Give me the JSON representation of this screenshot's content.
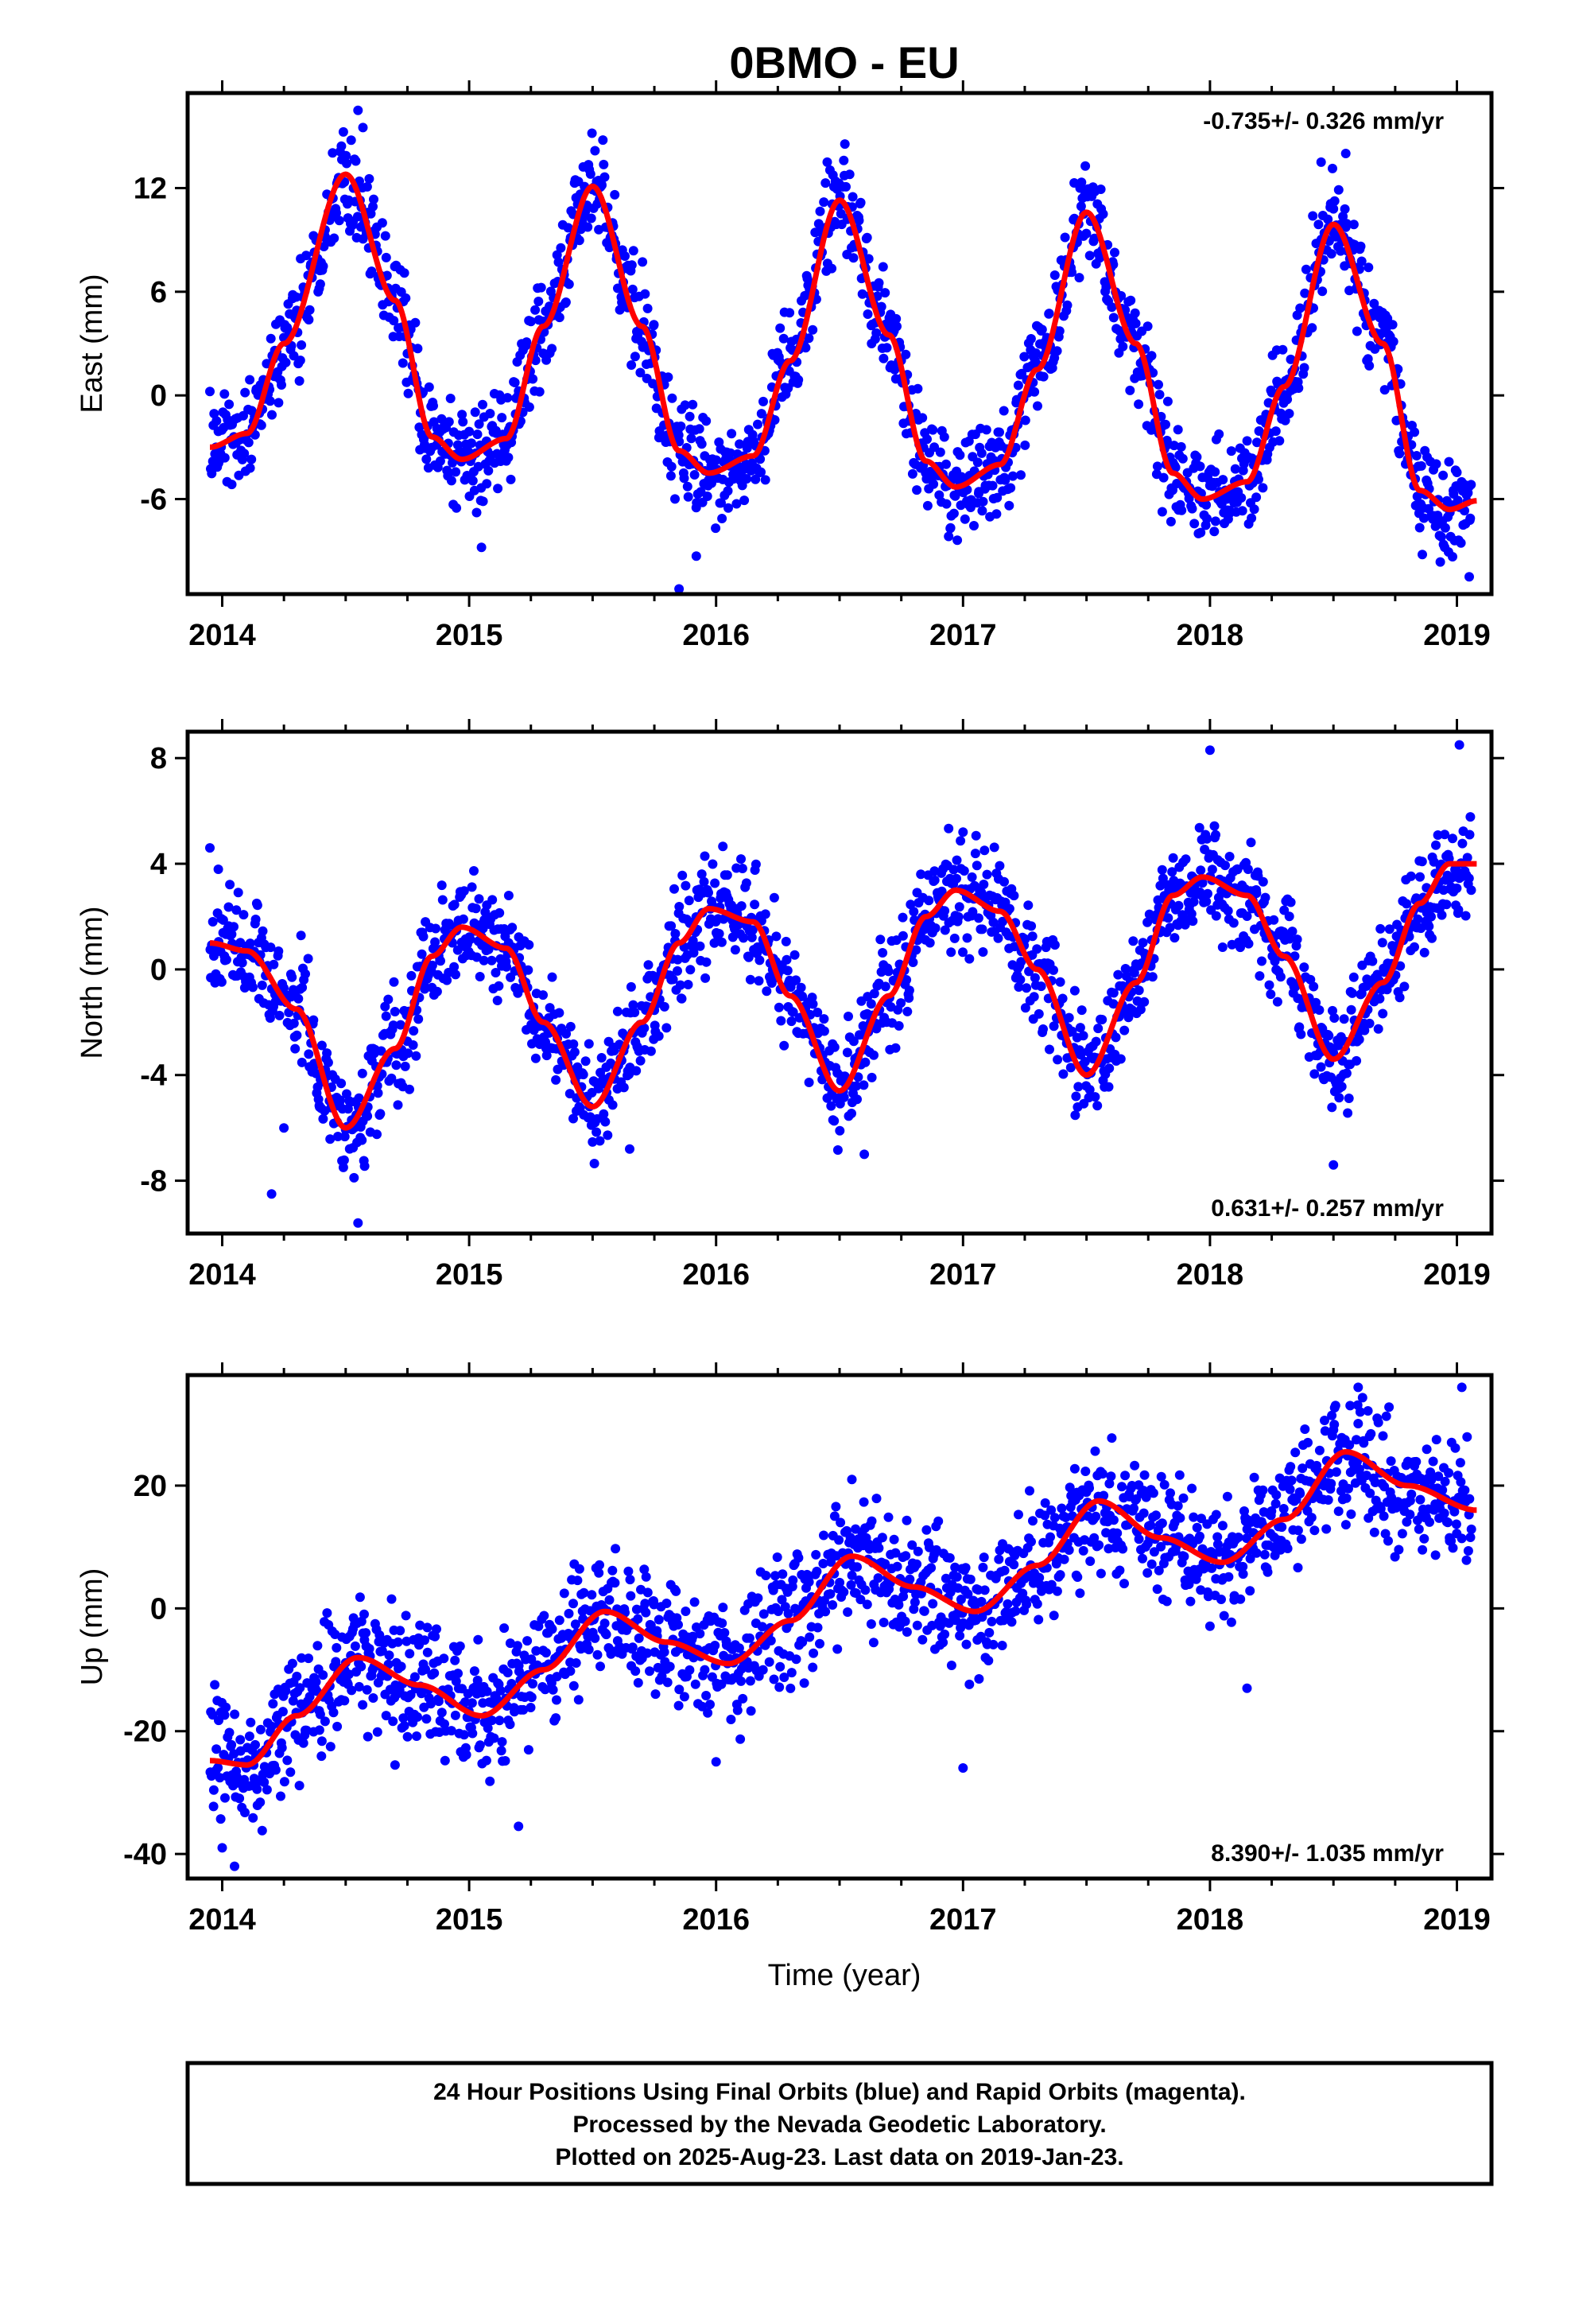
{
  "title": "0BMO - EU",
  "x_axis_title": "Time (year)",
  "caption": [
    "24 Hour Positions Using Final Orbits (blue) and Rapid Orbits (magenta).",
    "Processed by the Nevada Geodetic Laboratory.",
    "Plotted on 2025-Aug-23. Last data on 2019-Jan-23."
  ],
  "colors": {
    "final_orbits": "#0000ff",
    "rapid_orbits": "#ff00ff",
    "model_fit": "#ff0000"
  },
  "chart_data": [
    {
      "type": "scatter",
      "ylabel": "East (mm)",
      "rate_label": "-0.735+/- 0.326 mm/yr",
      "rate_position": "top-right",
      "xlim": [
        2013.86,
        2019.14
      ],
      "ylim": [
        -11.5,
        17.5
      ],
      "x_ticks": [
        2014,
        2015,
        2016,
        2017,
        2018,
        2019
      ],
      "y_ticks": [
        -6,
        0,
        6,
        12
      ],
      "model": {
        "rate": -0.735,
        "samples": [
          [
            2013.95,
            -3.0
          ],
          [
            2014.1,
            -2.2
          ],
          [
            2014.25,
            3.0
          ],
          [
            2014.5,
            12.8
          ],
          [
            2014.7,
            5.5
          ],
          [
            2014.85,
            -2.4
          ],
          [
            2014.97,
            -3.7
          ],
          [
            2015.15,
            -2.5
          ],
          [
            2015.3,
            4.0
          ],
          [
            2015.5,
            12.1
          ],
          [
            2015.7,
            4.0
          ],
          [
            2015.85,
            -3.2
          ],
          [
            2015.97,
            -4.5
          ],
          [
            2016.15,
            -3.5
          ],
          [
            2016.3,
            2.0
          ],
          [
            2016.5,
            11.3
          ],
          [
            2016.7,
            3.5
          ],
          [
            2016.85,
            -3.8
          ],
          [
            2016.97,
            -5.3
          ],
          [
            2017.15,
            -4.0
          ],
          [
            2017.3,
            1.5
          ],
          [
            2017.5,
            10.6
          ],
          [
            2017.7,
            3.0
          ],
          [
            2017.85,
            -4.5
          ],
          [
            2017.97,
            -6.0
          ],
          [
            2018.15,
            -5.0
          ],
          [
            2018.3,
            0.5
          ],
          [
            2018.5,
            9.9
          ],
          [
            2018.7,
            3.0
          ],
          [
            2018.85,
            -5.5
          ],
          [
            2018.97,
            -6.6
          ],
          [
            2019.08,
            -6.1
          ]
        ]
      },
      "observations": {
        "count": 1600,
        "x_start": 2013.95,
        "x_end": 2019.06,
        "scatter_mm": 1.5,
        "extra_points": [
          [
            2014.55,
            16.5
          ],
          [
            2014.57,
            15.5
          ],
          [
            2015.85,
            -11.2
          ],
          [
            2015.05,
            -8.8
          ],
          [
            2015.92,
            -9.3
          ],
          [
            2018.45,
            13.5
          ],
          [
            2018.55,
            14.0
          ],
          [
            2019.05,
            -10.5
          ],
          [
            2016.45,
            13.5
          ],
          [
            2017.45,
            12.3
          ]
        ]
      }
    },
    {
      "type": "scatter",
      "ylabel": "North (mm)",
      "rate_label": "0.631+/- 0.257 mm/yr",
      "rate_position": "bottom-right",
      "xlim": [
        2013.86,
        2019.14
      ],
      "ylim": [
        -10,
        9
      ],
      "x_ticks": [
        2014,
        2015,
        2016,
        2017,
        2018,
        2019
      ],
      "y_ticks": [
        -8,
        -4,
        0,
        4,
        8
      ],
      "model": {
        "rate": 0.631,
        "samples": [
          [
            2013.95,
            1.0
          ],
          [
            2014.1,
            0.7
          ],
          [
            2014.3,
            -1.5
          ],
          [
            2014.5,
            -6.0
          ],
          [
            2014.7,
            -3.0
          ],
          [
            2014.85,
            0.5
          ],
          [
            2014.97,
            1.6
          ],
          [
            2015.15,
            0.8
          ],
          [
            2015.3,
            -2.0
          ],
          [
            2015.5,
            -5.2
          ],
          [
            2015.7,
            -2.0
          ],
          [
            2015.85,
            1.0
          ],
          [
            2015.97,
            2.3
          ],
          [
            2016.15,
            1.8
          ],
          [
            2016.3,
            -1.0
          ],
          [
            2016.5,
            -4.6
          ],
          [
            2016.7,
            -1.0
          ],
          [
            2016.85,
            2.0
          ],
          [
            2016.97,
            3.0
          ],
          [
            2017.15,
            2.2
          ],
          [
            2017.3,
            0.0
          ],
          [
            2017.5,
            -4.0
          ],
          [
            2017.7,
            -0.5
          ],
          [
            2017.85,
            2.8
          ],
          [
            2017.97,
            3.5
          ],
          [
            2018.15,
            2.8
          ],
          [
            2018.3,
            0.5
          ],
          [
            2018.5,
            -3.4
          ],
          [
            2018.7,
            -0.5
          ],
          [
            2018.85,
            2.5
          ],
          [
            2018.97,
            4.0
          ],
          [
            2019.08,
            4.0
          ]
        ]
      },
      "observations": {
        "count": 1600,
        "x_start": 2013.95,
        "x_end": 2019.06,
        "scatter_mm": 1.0,
        "extra_points": [
          [
            2013.95,
            4.6
          ],
          [
            2014.55,
            -9.6
          ],
          [
            2014.25,
            -6.0
          ],
          [
            2014.2,
            -8.5
          ],
          [
            2018.0,
            8.3
          ],
          [
            2019.01,
            8.5
          ],
          [
            2016.6,
            -7.0
          ],
          [
            2017.0,
            5.2
          ],
          [
            2018.5,
            -7.4
          ],
          [
            2015.65,
            -6.8
          ]
        ]
      }
    },
    {
      "type": "scatter",
      "ylabel": "Up (mm)",
      "rate_label": "8.390+/- 1.035 mm/yr",
      "rate_position": "bottom-right",
      "xlim": [
        2013.86,
        2019.14
      ],
      "ylim": [
        -44,
        38
      ],
      "x_ticks": [
        2014,
        2015,
        2016,
        2017,
        2018,
        2019
      ],
      "y_ticks": [
        -40,
        -20,
        0,
        20
      ],
      "model": {
        "rate": 8.39,
        "samples": [
          [
            2013.95,
            -24.8
          ],
          [
            2014.1,
            -25.5
          ],
          [
            2014.3,
            -17.5
          ],
          [
            2014.55,
            -8.0
          ],
          [
            2014.8,
            -12.5
          ],
          [
            2015.05,
            -17.5
          ],
          [
            2015.3,
            -10.0
          ],
          [
            2015.55,
            -0.5
          ],
          [
            2015.8,
            -5.5
          ],
          [
            2016.05,
            -9.0
          ],
          [
            2016.3,
            -2.0
          ],
          [
            2016.55,
            8.5
          ],
          [
            2016.8,
            3.5
          ],
          [
            2017.05,
            -0.5
          ],
          [
            2017.3,
            7.0
          ],
          [
            2017.55,
            17.5
          ],
          [
            2017.8,
            11.5
          ],
          [
            2018.05,
            7.5
          ],
          [
            2018.3,
            14.5
          ],
          [
            2018.55,
            25.5
          ],
          [
            2018.8,
            20.0
          ],
          [
            2019.08,
            16.0
          ]
        ]
      },
      "observations": {
        "count": 1600,
        "x_start": 2013.95,
        "x_end": 2019.06,
        "scatter_mm": 5.0,
        "extra_points": [
          [
            2014.05,
            -42.0
          ],
          [
            2014.0,
            -39.0
          ],
          [
            2015.2,
            -35.5
          ],
          [
            2016.55,
            21.0
          ],
          [
            2017.0,
            -26.0
          ],
          [
            2018.6,
            36.0
          ],
          [
            2019.02,
            36.0
          ],
          [
            2018.15,
            -13.0
          ],
          [
            2014.7,
            -25.5
          ],
          [
            2016.0,
            -25.0
          ]
        ]
      }
    }
  ]
}
